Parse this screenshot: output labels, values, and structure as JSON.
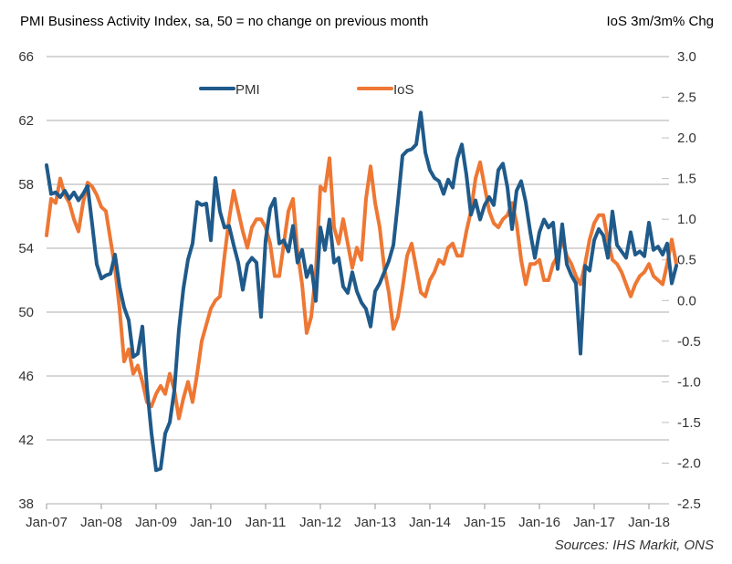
{
  "chart_data": {
    "type": "line",
    "title": "PMI Business Activity Index, sa, 50 = no change on previous month",
    "right_axis_title": "IoS 3m/3m% Chg",
    "source": "Sources: IHS Markit, ONS",
    "x_start": "Jan-07",
    "x_ticks": [
      "Jan-07",
      "Jan-08",
      "Jan-09",
      "Jan-10",
      "Jan-11",
      "Jan-12",
      "Jan-13",
      "Jan-14",
      "Jan-15",
      "Jan-16",
      "Jan-17",
      "Jan-18"
    ],
    "left_axis": {
      "ylim": [
        38,
        66
      ],
      "ticks": [
        "38",
        "42",
        "46",
        "50",
        "54",
        "58",
        "62",
        "66"
      ]
    },
    "right_axis": {
      "ylim": [
        -2.5,
        3.0
      ],
      "ticks": [
        "-2.5",
        "-2.0",
        "-1.5",
        "-1.0",
        "-0.5",
        "0.0",
        "0.5",
        "1.0",
        "1.5",
        "2.0",
        "2.5",
        "3.0"
      ]
    },
    "grid": true,
    "legend": [
      {
        "name": "PMI",
        "color": "#1f5a8a"
      },
      {
        "name": "IoS",
        "color": "#ee7733"
      }
    ],
    "legend_position": "top-center",
    "series": [
      {
        "name": "PMI",
        "axis": "left",
        "color": "#1f5a8a",
        "values": [
          59.2,
          57.4,
          57.5,
          57.2,
          57.6,
          57.1,
          57.5,
          57.0,
          57.4,
          57.9,
          55.5,
          53.0,
          52.1,
          52.3,
          52.4,
          53.6,
          51.6,
          50.3,
          49.5,
          47.2,
          47.4,
          49.1,
          45.3,
          42.4,
          40.1,
          40.2,
          42.4,
          43.1,
          45.1,
          48.9,
          51.5,
          53.3,
          54.3,
          56.9,
          56.7,
          56.8,
          54.5,
          58.4,
          56.3,
          55.3,
          55.4,
          54.2,
          53.1,
          51.4,
          53.0,
          53.4,
          53.1,
          49.7,
          54.5,
          56.5,
          57.1,
          54.3,
          54.5,
          53.8,
          55.4,
          53.1,
          53.9,
          52.2,
          52.9,
          50.7,
          55.3,
          53.9,
          55.8,
          53.1,
          53.4,
          51.6,
          51.2,
          52.5,
          51.3,
          50.6,
          50.2,
          49.1,
          51.3,
          51.8,
          52.5,
          53.2,
          54.2,
          56.9,
          59.8,
          60.1,
          60.2,
          60.5,
          62.5,
          60.0,
          58.9,
          58.4,
          58.2,
          57.4,
          58.3,
          57.8,
          59.6,
          60.5,
          58.6,
          56.1,
          57.0,
          55.8,
          56.7,
          57.2,
          56.7,
          58.9,
          59.3,
          57.8,
          55.2,
          57.6,
          58.2,
          56.9,
          55.0,
          53.4,
          55.0,
          55.8,
          55.3,
          55.6,
          52.7,
          55.5,
          53.0,
          52.3,
          51.8,
          47.4,
          52.9,
          52.6,
          54.5,
          55.2,
          54.8,
          53.4,
          56.3,
          54.2,
          53.8,
          53.4,
          55.0,
          53.6,
          53.8,
          53.5,
          55.6,
          53.9,
          54.1,
          53.6,
          54.3,
          51.8,
          52.9
        ]
      },
      {
        "name": "IoS",
        "axis": "right",
        "color": "#ee7733",
        "values": [
          0.8,
          1.25,
          1.2,
          1.5,
          1.3,
          1.2,
          1.0,
          0.85,
          1.2,
          1.45,
          1.4,
          1.3,
          1.15,
          1.1,
          0.75,
          0.4,
          -0.1,
          -0.75,
          -0.6,
          -0.9,
          -0.8,
          -1.0,
          -1.25,
          -1.3,
          -1.15,
          -1.05,
          -1.15,
          -0.9,
          -1.1,
          -1.45,
          -1.2,
          -1.0,
          -1.25,
          -0.9,
          -0.5,
          -0.3,
          -0.1,
          0.0,
          0.05,
          0.55,
          1.0,
          1.35,
          1.1,
          0.85,
          0.65,
          0.9,
          1.0,
          1.0,
          0.9,
          0.7,
          0.3,
          0.3,
          0.7,
          1.1,
          1.25,
          0.6,
          0.2,
          -0.4,
          -0.2,
          0.35,
          1.4,
          1.35,
          1.75,
          0.9,
          0.7,
          1.0,
          0.7,
          0.4,
          0.65,
          0.5,
          1.25,
          1.65,
          1.2,
          0.9,
          0.4,
          0.1,
          -0.35,
          -0.2,
          0.15,
          0.55,
          0.7,
          0.4,
          0.1,
          0.05,
          0.25,
          0.35,
          0.5,
          0.45,
          0.65,
          0.7,
          0.55,
          0.55,
          0.85,
          1.1,
          1.5,
          1.7,
          1.4,
          1.1,
          0.95,
          0.9,
          1.0,
          1.05,
          1.2,
          0.95,
          0.5,
          0.2,
          0.45,
          0.45,
          0.5,
          0.25,
          0.25,
          0.45,
          0.55,
          0.75,
          0.55,
          0.45,
          0.3,
          0.2,
          0.45,
          0.75,
          0.95,
          1.05,
          1.05,
          0.75,
          0.5,
          0.45,
          0.35,
          0.2,
          0.05,
          0.2,
          0.3,
          0.35,
          0.45,
          0.3,
          0.25,
          0.2,
          0.45,
          0.75,
          0.45
        ]
      }
    ]
  }
}
